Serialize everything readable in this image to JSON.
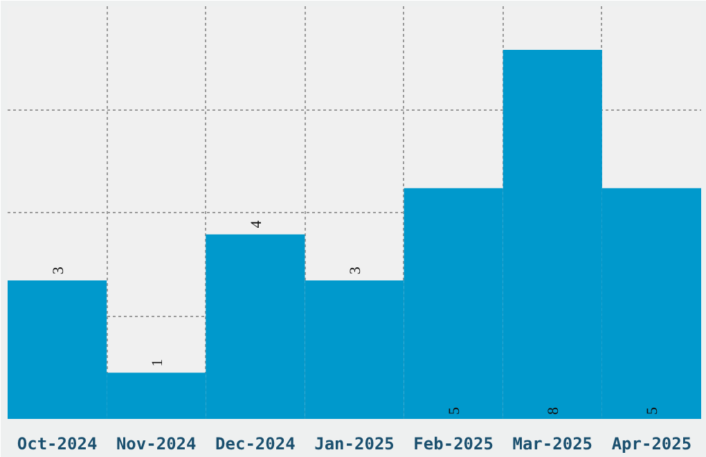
{
  "chart_data": {
    "type": "bar",
    "categories": [
      "Oct-2024",
      "Nov-2024",
      "Dec-2024",
      "Jan-2025",
      "Feb-2025",
      "Mar-2025",
      "Apr-2025"
    ],
    "values": [
      3,
      1,
      4,
      3,
      5,
      8,
      5
    ],
    "color": "#0099cc",
    "data_labels": true,
    "grid": true,
    "tick_labels": "x"
  }
}
